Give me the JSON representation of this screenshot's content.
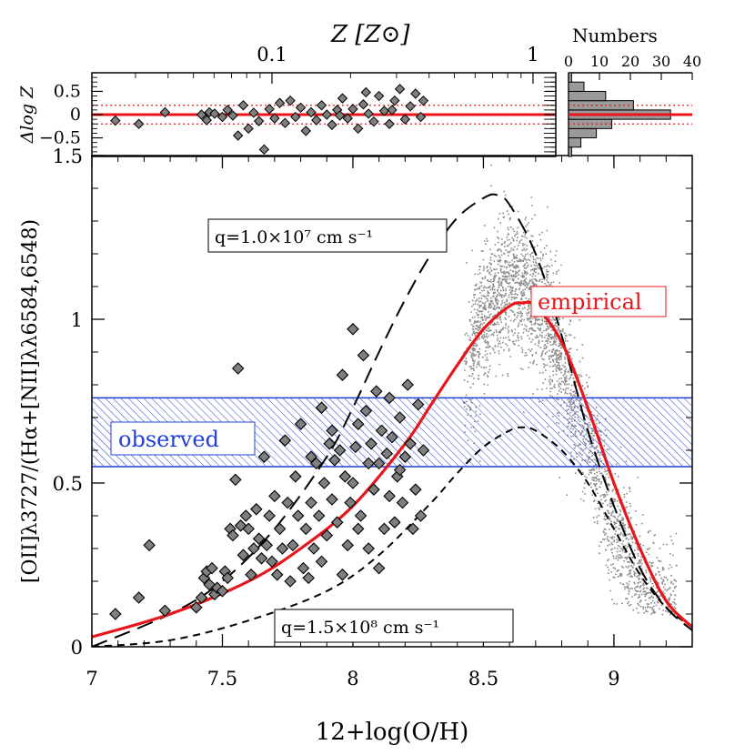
{
  "chart_data": {
    "type": "scatter",
    "top_axis": {
      "label": "Z  [Z⊙]",
      "ticks": [
        {
          "value": 0.1,
          "label": "0.1"
        },
        {
          "value": 1,
          "label": "1"
        }
      ]
    },
    "main": {
      "xlabel": "12+log(O/H)",
      "ylabel": "[OII]λ3727/(Hα+[NII]λλ6584,6548)",
      "xlim": [
        7.0,
        9.3
      ],
      "ylim": [
        0.0,
        1.5
      ],
      "xticks": [
        {
          "value": 7,
          "label": "7"
        },
        {
          "value": 7.5,
          "label": "7.5"
        },
        {
          "value": 8,
          "label": "8"
        },
        {
          "value": 8.5,
          "label": "8.5"
        },
        {
          "value": 9,
          "label": "9"
        }
      ],
      "yticks": [
        {
          "value": 0,
          "label": "0"
        },
        {
          "value": 0.5,
          "label": "0.5"
        },
        {
          "value": 1,
          "label": "1"
        },
        {
          "value": 1.5,
          "label": "1.5"
        }
      ],
      "observed_band": {
        "ymin": 0.55,
        "ymax": 0.76,
        "label": "observed",
        "color": "#1f3fd6"
      },
      "empirical_curve": {
        "label": "empirical",
        "color": "#e8161b",
        "x": [
          7.0,
          7.3,
          7.6,
          7.8,
          8.0,
          8.2,
          8.3,
          8.4,
          8.5,
          8.6,
          8.65,
          8.7,
          8.8,
          8.9,
          9.0,
          9.1,
          9.2,
          9.3
        ],
        "y": [
          0.03,
          0.1,
          0.2,
          0.3,
          0.43,
          0.62,
          0.74,
          0.86,
          0.97,
          1.04,
          1.05,
          1.04,
          0.93,
          0.73,
          0.5,
          0.3,
          0.14,
          0.06
        ]
      },
      "model_low_q": {
        "label": "q=1.0×10⁷ cm s⁻¹",
        "x": [
          7.0,
          7.3,
          7.5,
          7.7,
          7.9,
          8.0,
          8.1,
          8.2,
          8.3,
          8.4,
          8.5,
          8.55,
          8.6,
          8.7,
          8.8,
          8.9,
          9.0,
          9.1,
          9.2,
          9.3
        ],
        "y": [
          0.0,
          0.1,
          0.2,
          0.36,
          0.58,
          0.73,
          0.9,
          1.06,
          1.2,
          1.31,
          1.37,
          1.38,
          1.35,
          1.2,
          0.95,
          0.66,
          0.43,
          0.24,
          0.12,
          0.05
        ]
      },
      "model_high_q": {
        "label": "q=1.5×10⁸ cm s⁻¹",
        "x": [
          7.0,
          7.3,
          7.6,
          7.9,
          8.1,
          8.3,
          8.4,
          8.5,
          8.6,
          8.65,
          8.7,
          8.8,
          8.9,
          9.0,
          9.1,
          9.2,
          9.3
        ],
        "y": [
          0.0,
          0.02,
          0.08,
          0.17,
          0.28,
          0.44,
          0.53,
          0.61,
          0.66,
          0.67,
          0.66,
          0.6,
          0.5,
          0.36,
          0.22,
          0.12,
          0.06
        ]
      },
      "diamonds": [
        [
          7.09,
          0.1
        ],
        [
          7.18,
          0.15
        ],
        [
          7.22,
          0.31
        ],
        [
          7.28,
          0.11
        ],
        [
          7.4,
          0.12
        ],
        [
          7.42,
          0.15
        ],
        [
          7.43,
          0.21
        ],
        [
          7.44,
          0.23
        ],
        [
          7.45,
          0.19
        ],
        [
          7.46,
          0.24
        ],
        [
          7.47,
          0.16
        ],
        [
          7.48,
          0.18
        ],
        [
          7.5,
          0.17
        ],
        [
          7.51,
          0.23
        ],
        [
          7.52,
          0.21
        ],
        [
          7.53,
          0.36
        ],
        [
          7.54,
          0.34
        ],
        [
          7.55,
          0.51
        ],
        [
          7.56,
          0.85
        ],
        [
          7.57,
          0.37
        ],
        [
          7.58,
          0.28
        ],
        [
          7.59,
          0.4
        ],
        [
          7.6,
          0.36
        ],
        [
          7.61,
          0.22
        ],
        [
          7.62,
          0.3
        ],
        [
          7.63,
          0.42
        ],
        [
          7.64,
          0.33
        ],
        [
          7.65,
          0.27
        ],
        [
          7.66,
          0.58
        ],
        [
          7.67,
          0.31
        ],
        [
          7.68,
          0.4
        ],
        [
          7.69,
          0.26
        ],
        [
          7.7,
          0.46
        ],
        [
          7.71,
          0.22
        ],
        [
          7.72,
          0.36
        ],
        [
          7.73,
          0.3
        ],
        [
          7.74,
          0.63
        ],
        [
          7.75,
          0.44
        ],
        [
          7.76,
          0.2
        ],
        [
          7.77,
          0.31
        ],
        [
          7.78,
          0.52
        ],
        [
          7.79,
          0.4
        ],
        [
          7.8,
          0.68
        ],
        [
          7.81,
          0.24
        ],
        [
          7.82,
          0.36
        ],
        [
          7.83,
          0.21
        ],
        [
          7.84,
          0.44
        ],
        [
          7.85,
          0.3
        ],
        [
          7.86,
          0.56
        ],
        [
          7.87,
          0.4
        ],
        [
          7.88,
          0.73
        ],
        [
          7.89,
          0.5
        ],
        [
          7.9,
          0.34
        ],
        [
          7.91,
          0.62
        ],
        [
          7.92,
          0.45
        ],
        [
          7.93,
          0.57
        ],
        [
          7.94,
          0.38
        ],
        [
          7.95,
          0.6
        ],
        [
          7.96,
          0.83
        ],
        [
          7.97,
          0.52
        ],
        [
          7.98,
          0.31
        ],
        [
          7.99,
          0.44
        ],
        [
          8.0,
          0.97
        ],
        [
          8.01,
          0.61
        ],
        [
          8.02,
          0.68
        ],
        [
          8.03,
          0.4
        ],
        [
          8.04,
          0.89
        ],
        [
          8.05,
          0.72
        ],
        [
          8.06,
          0.3
        ],
        [
          8.07,
          0.62
        ],
        [
          8.08,
          0.48
        ],
        [
          8.09,
          0.78
        ],
        [
          8.1,
          0.56
        ],
        [
          8.11,
          0.66
        ],
        [
          8.12,
          0.36
        ],
        [
          8.13,
          0.59
        ],
        [
          8.14,
          0.46
        ],
        [
          8.15,
          0.64
        ],
        [
          8.16,
          0.38
        ],
        [
          8.17,
          0.52
        ],
        [
          8.18,
          0.7
        ],
        [
          8.19,
          0.44
        ],
        [
          8.2,
          0.58
        ],
        [
          8.21,
          0.8
        ],
        [
          8.22,
          0.62
        ],
        [
          8.23,
          0.36
        ],
        [
          8.24,
          0.48
        ],
        [
          8.25,
          0.74
        ],
        [
          8.26,
          0.4
        ],
        [
          8.27,
          0.6
        ],
        [
          8.02,
          0.36
        ],
        [
          7.96,
          0.22
        ],
        [
          8.1,
          0.24
        ],
        [
          7.88,
          0.26
        ],
        [
          8.06,
          0.56
        ],
        [
          8.14,
          0.76
        ],
        [
          7.92,
          0.66
        ],
        [
          8.0,
          0.5
        ],
        [
          8.18,
          0.54
        ],
        [
          7.84,
          0.58
        ]
      ],
      "gray_dots": "Cloud of ~10000 small gray SDSS points concentrated between 12+log(O/H) 8.4 and 9.25"
    },
    "residual_panel": {
      "ylabel": "Δlog Z",
      "yticks": [
        {
          "value": 0.5,
          "label": "0.5"
        },
        {
          "value": 0,
          "label": "0"
        },
        {
          "value": -0.5,
          "label": "−0.5"
        }
      ],
      "ylim": [
        -0.9,
        0.9
      ],
      "dotted_lines": [
        0.2,
        -0.2
      ],
      "residuals": [
        [
          7.09,
          -0.13
        ],
        [
          7.18,
          -0.2
        ],
        [
          7.28,
          0.05
        ],
        [
          7.42,
          0.0
        ],
        [
          7.44,
          -0.12
        ],
        [
          7.45,
          0.05
        ],
        [
          7.47,
          0.02
        ],
        [
          7.5,
          -0.05
        ],
        [
          7.52,
          0.1
        ],
        [
          7.54,
          -0.02
        ],
        [
          7.56,
          -0.45
        ],
        [
          7.58,
          0.2
        ],
        [
          7.6,
          -0.3
        ],
        [
          7.62,
          0.04
        ],
        [
          7.64,
          -0.14
        ],
        [
          7.66,
          -0.75
        ],
        [
          7.68,
          0.12
        ],
        [
          7.7,
          -0.08
        ],
        [
          7.72,
          0.25
        ],
        [
          7.74,
          -0.18
        ],
        [
          7.76,
          0.3
        ],
        [
          7.78,
          -0.05
        ],
        [
          7.8,
          0.15
        ],
        [
          7.82,
          -0.35
        ],
        [
          7.84,
          0.05
        ],
        [
          7.86,
          -0.12
        ],
        [
          7.88,
          0.2
        ],
        [
          7.9,
          0.0
        ],
        [
          7.92,
          -0.22
        ],
        [
          7.94,
          0.1
        ],
        [
          7.96,
          0.35
        ],
        [
          7.98,
          -0.08
        ],
        [
          8.0,
          0.12
        ],
        [
          8.02,
          -0.3
        ],
        [
          8.04,
          0.22
        ],
        [
          8.06,
          0.02
        ],
        [
          8.08,
          -0.15
        ],
        [
          8.1,
          0.4
        ],
        [
          8.12,
          0.08
        ],
        [
          8.14,
          -0.2
        ],
        [
          8.16,
          0.3
        ],
        [
          8.18,
          0.55
        ],
        [
          8.2,
          -0.1
        ],
        [
          8.22,
          0.18
        ],
        [
          8.24,
          0.45
        ],
        [
          8.26,
          -0.05
        ],
        [
          8.27,
          0.3
        ],
        [
          8.15,
          0.1
        ],
        [
          8.05,
          0.48
        ],
        [
          7.95,
          -0.02
        ]
      ]
    },
    "histogram_panel": {
      "title": "Numbers",
      "xticks": [
        {
          "value": 0,
          "label": "0"
        },
        {
          "value": 10,
          "label": "10"
        },
        {
          "value": 20,
          "label": "20"
        },
        {
          "value": 30,
          "label": "30"
        },
        {
          "value": 40,
          "label": "40"
        }
      ],
      "xlim": [
        0,
        40
      ],
      "bins": [
        {
          "lo": -0.9,
          "hi": -0.7,
          "count": 1
        },
        {
          "lo": -0.7,
          "hi": -0.5,
          "count": 4
        },
        {
          "lo": -0.5,
          "hi": -0.3,
          "count": 9
        },
        {
          "lo": -0.3,
          "hi": -0.1,
          "count": 14
        },
        {
          "lo": -0.1,
          "hi": 0.1,
          "count": 33
        },
        {
          "lo": 0.1,
          "hi": 0.3,
          "count": 21
        },
        {
          "lo": 0.3,
          "hi": 0.5,
          "count": 12
        },
        {
          "lo": 0.5,
          "hi": 0.7,
          "count": 5
        },
        {
          "lo": 0.7,
          "hi": 0.9,
          "count": 1
        }
      ]
    }
  }
}
